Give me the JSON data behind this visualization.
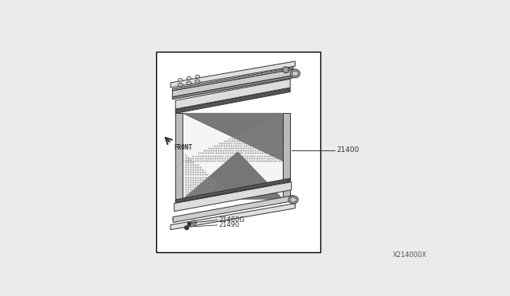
{
  "bg_color": "#ebebeb",
  "box_bg": "#ffffff",
  "box_border": "#000000",
  "label_21400": "21400",
  "label_21460G": "21460G",
  "label_21490": "21490",
  "label_front": "FRONT",
  "label_code": "X214000X",
  "skew": 0.38,
  "part_ec": "#333333",
  "part_lw": 0.7,
  "hatch_gray": "#aaaaaa",
  "dark_gray": "#444444",
  "mid_gray": "#888888",
  "light_gray": "#cccccc",
  "white_part": "#e8e8e8"
}
